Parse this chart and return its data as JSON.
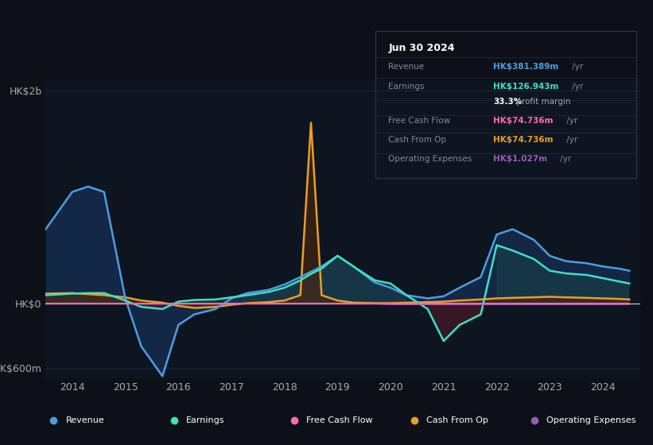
{
  "background_color": "#0d1117",
  "plot_bg_color": "#0d1520",
  "revenue_color": "#4e9de0",
  "earnings_color": "#40e0c0",
  "free_cash_flow_color": "#ff69b4",
  "cash_from_op_color": "#e8a020",
  "operating_expenses_color": "#9b59b6",
  "ylim": [
    -700,
    2100
  ],
  "yticks": [
    -600,
    0,
    2000
  ],
  "ytick_labels": [
    "-HK$600m",
    "HK$0",
    "HK$2b"
  ],
  "xticks": [
    2014,
    2015,
    2016,
    2017,
    2018,
    2019,
    2020,
    2021,
    2022,
    2023,
    2024
  ],
  "title_box": {
    "date": "Jun 30 2024",
    "revenue_val": "HK$381.389m",
    "earnings_val": "HK$126.943m",
    "profit_margin": "33.3%",
    "fcf_val": "HK$74.736m",
    "cfop_val": "HK$74.736m",
    "opex_val": "HK$1.027m"
  },
  "legend_items": [
    {
      "label": "Revenue",
      "color": "#4e9de0"
    },
    {
      "label": "Earnings",
      "color": "#40e0c0"
    },
    {
      "label": "Free Cash Flow",
      "color": "#ff69b4"
    },
    {
      "label": "Cash From Op",
      "color": "#e8a020"
    },
    {
      "label": "Operating Expenses",
      "color": "#9b59b6"
    }
  ]
}
